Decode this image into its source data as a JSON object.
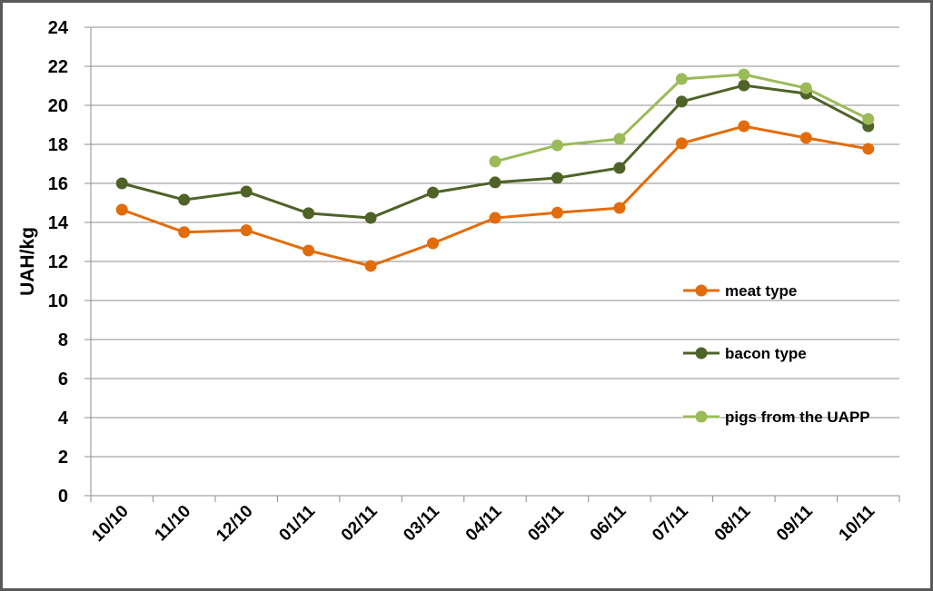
{
  "chart_data": {
    "type": "line",
    "title": "",
    "xlabel": "",
    "ylabel": "UAH/kg",
    "ylim": [
      0,
      24
    ],
    "ytick_step": 2,
    "yticks": [
      "0",
      "2",
      "4",
      "6",
      "8",
      "10",
      "12",
      "14",
      "16",
      "18",
      "20",
      "22",
      "24"
    ],
    "grid": true,
    "legend_position": "right",
    "categories": [
      "10/10",
      "11/10",
      "12/10",
      "01/11",
      "02/11",
      "03/11",
      "04/11",
      "05/11",
      "06/11",
      "07/11",
      "08/11",
      "09/11",
      "10/11"
    ],
    "series": [
      {
        "name": "meat type",
        "color": "#E36C0A",
        "values": [
          14.65,
          13.5,
          13.6,
          12.56,
          11.77,
          12.93,
          14.23,
          14.5,
          14.74,
          18.05,
          18.93,
          18.33,
          17.77
        ]
      },
      {
        "name": "bacon type",
        "color": "#4F6228",
        "values": [
          16.0,
          15.16,
          15.58,
          14.47,
          14.23,
          15.53,
          16.05,
          16.28,
          16.79,
          20.19,
          21.02,
          20.6,
          18.93
        ]
      },
      {
        "name": "pigs from the UAPP",
        "color": "#9BBB59",
        "values": [
          null,
          null,
          null,
          null,
          null,
          null,
          17.12,
          17.95,
          18.28,
          21.35,
          21.58,
          20.88,
          19.3
        ]
      }
    ]
  }
}
